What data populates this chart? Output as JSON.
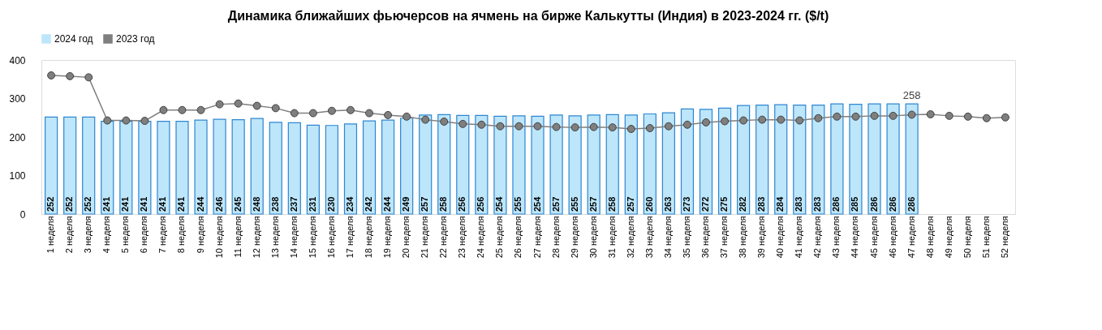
{
  "chart_data": {
    "type": "bar",
    "title": "Динамика ближайших фьючерсов на ячмень на бирже Калькутты (Индия) в 2023-2024 гг. ($/t)",
    "categories": [
      "1 неделя",
      "2 неделя",
      "3 неделя",
      "4 неделя",
      "5 неделя",
      "6 неделя",
      "7 неделя",
      "8 неделя",
      "9 неделя",
      "10 неделя",
      "11 неделя",
      "12 неделя",
      "13 неделя",
      "14 неделя",
      "15 неделя",
      "16 неделя",
      "17 неделя",
      "18 неделя",
      "19 неделя",
      "20 неделя",
      "21 неделя",
      "22 неделя",
      "23 неделя",
      "24 неделя",
      "25 неделя",
      "26 неделя",
      "27 неделя",
      "28 неделя",
      "29 неделя",
      "30 неделя",
      "31 неделя",
      "32 неделя",
      "33 неделя",
      "34 неделя",
      "35 неделя",
      "36 неделя",
      "37 неделя",
      "38 неделя",
      "39 неделя",
      "40 неделя",
      "41 неделя",
      "42 неделя",
      "43 неделя",
      "44 неделя",
      "45 неделя",
      "46 неделя",
      "47 неделя",
      "48 неделя",
      "49 неделя",
      "50 неделя",
      "51 неделя",
      "52 неделя"
    ],
    "series": [
      {
        "name": "2024 год",
        "color": "#bde6fa",
        "values": [
          252,
          252,
          252,
          241,
          241,
          241,
          241,
          241,
          244,
          246,
          245,
          248,
          238,
          237,
          231,
          230,
          234,
          242,
          244,
          249,
          257,
          258,
          256,
          256,
          254,
          255,
          254,
          257,
          255,
          257,
          258,
          257,
          260,
          263,
          273,
          272,
          275,
          282,
          283,
          284,
          283,
          283,
          286,
          285,
          286,
          286,
          286,
          null,
          null,
          null,
          null,
          null
        ],
        "value_labels": [
          "252",
          "252",
          "252",
          "241",
          "241",
          "241",
          "241",
          "241",
          "244",
          "246",
          "245",
          "248",
          "238",
          "237",
          "231",
          "230",
          "234",
          "242",
          "244",
          "249",
          "257",
          "258",
          "256",
          "256",
          "254",
          "255",
          "254",
          "257",
          "255",
          "257",
          "258",
          "257",
          "260",
          "263",
          "273",
          "272",
          "275",
          "282",
          "283",
          "284",
          "283",
          "283",
          "286",
          "285",
          "286",
          "286",
          "286",
          null,
          null,
          null,
          null,
          null
        ]
      },
      {
        "name": "2023 год",
        "type": "line",
        "color": "#7f7f7f",
        "marker": "circle",
        "values": [
          360,
          358,
          355,
          243,
          243,
          242,
          270,
          270,
          270,
          285,
          287,
          281,
          275,
          262,
          262,
          268,
          270,
          262,
          257,
          253,
          245,
          240,
          234,
          232,
          228,
          228,
          228,
          226,
          225,
          226,
          225,
          221,
          223,
          228,
          232,
          238,
          241,
          243,
          245,
          245,
          243,
          249,
          253,
          253,
          255,
          255,
          258,
          259,
          255,
          253,
          249,
          251
        ],
        "value_labels": [
          null,
          null,
          null,
          null,
          null,
          null,
          null,
          null,
          null,
          null,
          null,
          null,
          null,
          null,
          null,
          null,
          null,
          null,
          null,
          null,
          null,
          null,
          null,
          null,
          null,
          null,
          null,
          null,
          null,
          null,
          null,
          null,
          null,
          null,
          null,
          null,
          null,
          null,
          null,
          null,
          null,
          null,
          null,
          null,
          null,
          null,
          "258",
          null,
          null,
          null,
          null,
          null
        ]
      }
    ],
    "ylim": [
      0,
      400
    ],
    "yticks": [
      0,
      100,
      200,
      300,
      400
    ],
    "grid": false,
    "legend": "top"
  }
}
